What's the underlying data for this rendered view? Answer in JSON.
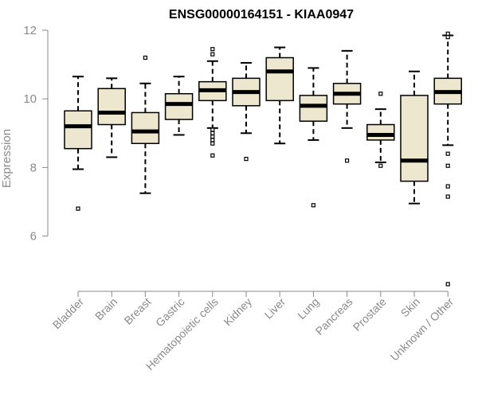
{
  "chart_data": {
    "type": "boxplot",
    "title": "ENSG00000164151 - KIAA0947",
    "xlabel": "",
    "ylabel": "Expression",
    "ylim": [
      4.6,
      12.0
    ],
    "yticks": [
      6,
      8,
      10,
      12
    ],
    "box_fill": "#ede7cf",
    "categories": [
      "Bladder",
      "Brain",
      "Breast",
      "Gastric",
      "Hematopoietic cells",
      "Kidney",
      "Liver",
      "Lung",
      "Pancreas",
      "Prostate",
      "Skin",
      "Unknown / Other"
    ],
    "boxes": [
      {
        "whisker_low": 7.95,
        "q1": 8.55,
        "median": 9.2,
        "q3": 9.65,
        "whisker_high": 10.65,
        "outliers": [
          6.8
        ]
      },
      {
        "whisker_low": 8.3,
        "q1": 9.25,
        "median": 9.6,
        "q3": 10.3,
        "whisker_high": 10.6,
        "outliers": []
      },
      {
        "whisker_low": 7.25,
        "q1": 8.7,
        "median": 9.05,
        "q3": 9.6,
        "whisker_high": 10.45,
        "outliers": [
          11.2
        ]
      },
      {
        "whisker_low": 8.95,
        "q1": 9.4,
        "median": 9.85,
        "q3": 10.15,
        "whisker_high": 10.65,
        "outliers": []
      },
      {
        "whisker_low": 9.15,
        "q1": 9.95,
        "median": 10.25,
        "q3": 10.5,
        "whisker_high": 11.1,
        "outliers": [
          11.45,
          11.3,
          9.1,
          9.0,
          8.9,
          8.8,
          8.7,
          8.35
        ]
      },
      {
        "whisker_low": 9.0,
        "q1": 9.8,
        "median": 10.2,
        "q3": 10.6,
        "whisker_high": 11.05,
        "outliers": [
          8.25
        ]
      },
      {
        "whisker_low": 8.7,
        "q1": 9.95,
        "median": 10.8,
        "q3": 11.2,
        "whisker_high": 11.5,
        "outliers": []
      },
      {
        "whisker_low": 8.8,
        "q1": 9.35,
        "median": 9.8,
        "q3": 10.1,
        "whisker_high": 10.9,
        "outliers": [
          6.9
        ]
      },
      {
        "whisker_low": 9.15,
        "q1": 9.85,
        "median": 10.15,
        "q3": 10.45,
        "whisker_high": 11.4,
        "outliers": [
          8.2
        ]
      },
      {
        "whisker_low": 8.15,
        "q1": 8.8,
        "median": 8.95,
        "q3": 9.25,
        "whisker_high": 9.7,
        "outliers": [
          10.15,
          8.05
        ]
      },
      {
        "whisker_low": 6.95,
        "q1": 7.6,
        "median": 8.2,
        "q3": 10.1,
        "whisker_high": 10.8,
        "outliers": []
      },
      {
        "whisker_low": 8.65,
        "q1": 9.85,
        "median": 10.2,
        "q3": 10.6,
        "whisker_high": 11.85,
        "outliers": [
          11.9,
          11.8,
          8.4,
          8.05,
          7.45,
          7.15,
          4.6
        ]
      }
    ]
  }
}
